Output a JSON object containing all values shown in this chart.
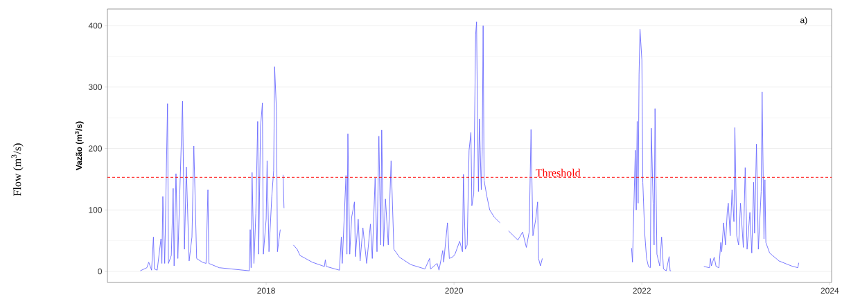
{
  "chart_data": {
    "type": "line",
    "ylabel": "Vazão (m$^{3}$/s)",
    "annotations": [
      "a)",
      "Flow (m$^{3}$/s)"
    ],
    "xlim": [
      2016.31,
      2024.02
    ],
    "ylim": [
      -18,
      427
    ],
    "xticks": [
      2018,
      2020,
      2022,
      2024
    ],
    "yticks": [
      0,
      {
        "value": 50,
        "label": null
      },
      100,
      {
        "value": 150,
        "label": null
      },
      200,
      {
        "value": 250,
        "label": null
      },
      300,
      {
        "value": 350,
        "label": null
      },
      400
    ],
    "grid": "y",
    "marker": "none",
    "line_style": "solid",
    "ref_lines": [
      {
        "axis": "y",
        "value": 153,
        "label": "Threshold",
        "color": "#ff0000",
        "line_style": "dashed"
      }
    ],
    "series": [
      {
        "color": "#6b6bff",
        "x": [
          2016.66,
          2016.73,
          2016.75,
          2016.78,
          2016.8,
          2016.81,
          2016.84,
          2016.88,
          2016.89,
          2016.9,
          2016.92,
          2016.95,
          2016.96,
          2016.99,
          2017.01,
          2017.02,
          2017.04,
          2017.06,
          2017.08,
          2017.11,
          2017.13,
          2017.15,
          2017.18,
          2017.21,
          2017.23,
          2017.26,
          2017.32,
          2017.36,
          2017.38,
          2017.39,
          2017.5,
          2017.82,
          2017.83,
          2017.84,
          2017.85,
          2017.87,
          2017.89,
          2017.91,
          2017.92,
          2017.94,
          2017.96,
          2017.97,
          2018.0,
          2018.01,
          2018.03,
          2018.06,
          2018.08,
          2018.09,
          2018.11,
          2018.12,
          2018.15,
          2018.165,
          2018.18,
          2018.19,
          2018.24,
          2018.29,
          2018.33,
          2018.36,
          2018.49,
          2018.62,
          2018.63,
          2018.64,
          2018.78,
          2018.8,
          2018.81,
          2018.85,
          2018.86,
          2018.87,
          2018.89,
          2018.91,
          2018.94,
          2018.95,
          2018.98,
          2019.0,
          2019.03,
          2019.07,
          2019.11,
          2019.13,
          2019.16,
          2019.18,
          2019.2,
          2019.22,
          2019.23,
          2019.25,
          2019.27,
          2019.3,
          2019.33,
          2019.36,
          2019.42,
          2019.54,
          2019.69,
          2019.74,
          2019.75,
          2019.82,
          2019.84,
          2019.88,
          2019.89,
          2019.93,
          2019.95,
          2019.99,
          2020.01,
          2020.06,
          2020.09,
          2020.1,
          2020.12,
          2020.14,
          2020.16,
          2020.18,
          2020.19,
          2020.21,
          2020.23,
          2020.24,
          2020.25,
          2020.26,
          2020.27,
          2020.29,
          2020.3,
          2020.31,
          2020.32,
          2020.35,
          2020.38,
          2020.43,
          2020.49,
          2020.535,
          2020.58,
          2020.68,
          2020.73,
          2020.77,
          2020.8,
          2020.82,
          2020.84,
          2020.87,
          2020.89,
          2020.9,
          2020.92,
          2020.94,
          2021.4,
          2021.89,
          2021.9,
          2021.93,
          2021.94,
          2021.95,
          2021.96,
          2021.97,
          2021.98,
          2022.0,
          2022.01,
          2022.03,
          2022.05,
          2022.07,
          2022.09,
          2022.1,
          2022.12,
          2022.13,
          2022.14,
          2022.16,
          2022.19,
          2022.21,
          2022.23,
          2022.26,
          2022.29,
          2022.3,
          2022.31,
          2022.5,
          2022.66,
          2022.72,
          2022.73,
          2022.74,
          2022.77,
          2022.79,
          2022.82,
          2022.84,
          2022.85,
          2022.87,
          2022.89,
          2022.91,
          2022.92,
          2022.94,
          2022.96,
          2022.98,
          2022.99,
          2023.01,
          2023.03,
          2023.05,
          2023.08,
          2023.1,
          2023.12,
          2023.15,
          2023.17,
          2023.19,
          2023.2,
          2023.22,
          2023.24,
          2023.27,
          2023.28,
          2023.3,
          2023.31,
          2023.32,
          2023.36,
          2023.46,
          2023.59,
          2023.66,
          2023.67
        ],
        "values": [
          1,
          6,
          15,
          2,
          56,
          4,
          2,
          53,
          13,
          122,
          13,
          273,
          13,
          26,
          135,
          9,
          159,
          21,
          126,
          277,
          36,
          170,
          17,
          56,
          204,
          21,
          15,
          13,
          133,
          13,
          6,
          1,
          68,
          6,
          161,
          13,
          94,
          244,
          28,
          235,
          274,
          28,
          85,
          180,
          32,
          122,
          164,
          333,
          261,
          32,
          68,
          null,
          157,
          103,
          null,
          43,
          36,
          26,
          15,
          8,
          19,
          8,
          2,
          56,
          13,
          156,
          28,
          224,
          28,
          88,
          113,
          24,
          85,
          17,
          71,
          13,
          77,
          21,
          152,
          32,
          220,
          43,
          230,
          41,
          118,
          43,
          180,
          36,
          23,
          11,
          4,
          21,
          4,
          13,
          2,
          34,
          15,
          79,
          21,
          24,
          28,
          49,
          32,
          158,
          36,
          43,
          197,
          226,
          107,
          126,
          385,
          406,
          250,
          130,
          248,
          133,
          195,
          400,
          148,
          122,
          100,
          88,
          79,
          null,
          66,
          51,
          64,
          39,
          64,
          231,
          58,
          85,
          113,
          21,
          9,
          21,
          null,
          38,
          15,
          197,
          100,
          244,
          111,
          321,
          394,
          344,
          145,
          62,
          21,
          8,
          6,
          233,
          111,
          43,
          265,
          28,
          9,
          56,
          4,
          1,
          24,
          1,
          1,
          null,
          8,
          6,
          21,
          9,
          23,
          8,
          6,
          47,
          32,
          79,
          43,
          100,
          111,
          58,
          133,
          81,
          234,
          58,
          43,
          111,
          39,
          169,
          36,
          96,
          30,
          145,
          62,
          207,
          36,
          130,
          292,
          53,
          149,
          47,
          30,
          17,
          9,
          6,
          14
        ]
      }
    ]
  }
}
